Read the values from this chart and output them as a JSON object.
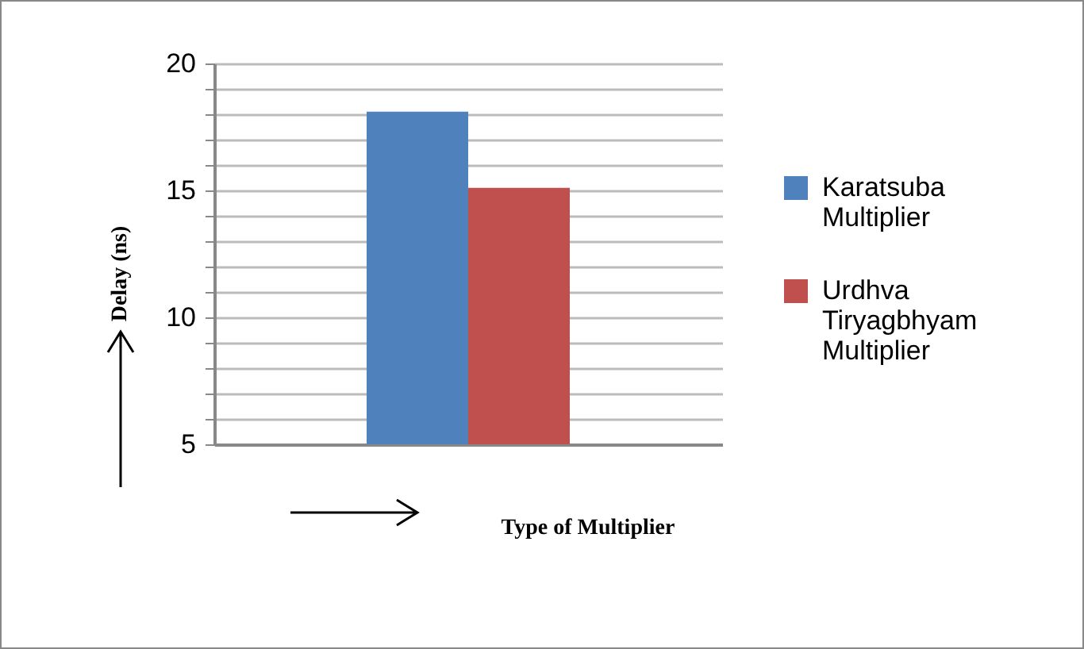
{
  "chart_data": {
    "type": "bar",
    "categories": [
      null
    ],
    "series": [
      {
        "name": "Karatsuba Multiplier",
        "color": "#4f81bd",
        "values": [
          18.1
        ]
      },
      {
        "name": "Urdhva Tiryagbhyam Multiplier",
        "color": "#c0504d",
        "values": [
          15.1
        ]
      }
    ],
    "ylabel": "Delay (ns)",
    "xlabel": "Type of Multiplier",
    "ylim": [
      5,
      20
    ],
    "yticks": [
      5,
      {
        "value": 6,
        "label": null
      },
      {
        "value": 7,
        "label": null
      },
      {
        "value": 8,
        "label": null
      },
      {
        "value": 9,
        "label": null
      },
      10,
      {
        "value": 11,
        "label": null
      },
      {
        "value": 12,
        "label": null
      },
      {
        "value": 13,
        "label": null
      },
      {
        "value": 14,
        "label": null
      },
      15,
      {
        "value": 16,
        "label": null
      },
      {
        "value": 17,
        "label": null
      },
      {
        "value": 18,
        "label": null
      },
      {
        "value": 19,
        "label": null
      },
      20
    ],
    "grid": true,
    "legend": "right",
    "tick_labels": "y"
  }
}
